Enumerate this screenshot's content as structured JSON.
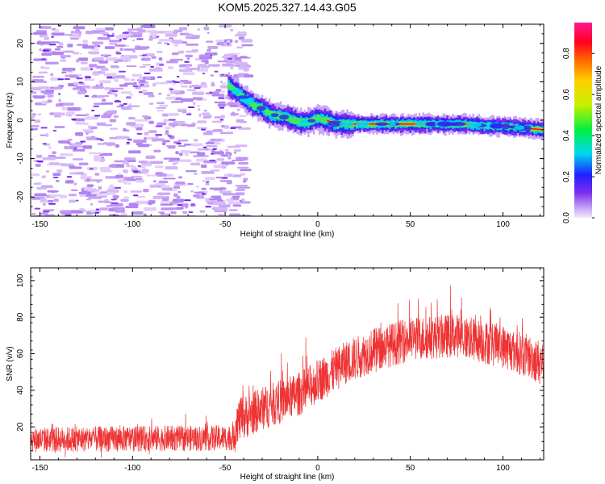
{
  "title": "KOM5.2025.327.14.43.G05",
  "colors": {
    "snr_line": "#ee3333",
    "frame": "#000000",
    "noise": "#c9a6f5"
  },
  "chart_data": [
    {
      "type": "heatmap",
      "name": "spectrogram",
      "xlabel": "Height of straight line (km)",
      "ylabel": "Frequency (Hz)",
      "xlim": [
        -155,
        122
      ],
      "ylim": [
        -25,
        25
      ],
      "xticks": [
        -150,
        -100,
        -50,
        0,
        50,
        100
      ],
      "yticks": [
        -20,
        -10,
        0,
        10,
        20
      ],
      "signal_track": {
        "x": [
          -48,
          -45,
          -40,
          -35,
          -30,
          -25,
          -20,
          -15,
          -10,
          -5,
          0,
          5,
          10,
          20,
          30,
          40,
          50,
          60,
          70,
          80,
          90,
          100,
          110,
          122
        ],
        "freq": [
          9,
          8,
          6,
          4,
          3,
          1.5,
          1,
          0.5,
          -0.5,
          -0.5,
          0.5,
          0,
          -1,
          -1,
          -1,
          -1,
          -1,
          -1,
          -1,
          -1,
          -1.5,
          -1.5,
          -2,
          -2.5
        ]
      },
      "colorbar": {
        "label": "Normalized spectral amplitude",
        "range": [
          0,
          0.95
        ],
        "ticks": [
          "0.0",
          "0.2",
          "0.4",
          "0.6",
          "0.8"
        ]
      }
    },
    {
      "type": "line",
      "name": "snr",
      "xlabel": "Height of straight line (km)",
      "ylabel": "SNR (v/v)",
      "xlim": [
        -155,
        122
      ],
      "ylim": [
        2,
        107
      ],
      "xticks": [
        -150,
        -100,
        -50,
        0,
        50,
        100
      ],
      "yticks": [
        20,
        40,
        60,
        80,
        100
      ],
      "baseline": {
        "x": [
          -155,
          -45,
          -44,
          -30,
          -10,
          0,
          15,
          30,
          50,
          75,
          100,
          122
        ],
        "y": [
          13,
          14,
          23,
          30,
          38,
          45,
          55,
          62,
          68,
          70,
          64,
          55
        ]
      }
    }
  ]
}
